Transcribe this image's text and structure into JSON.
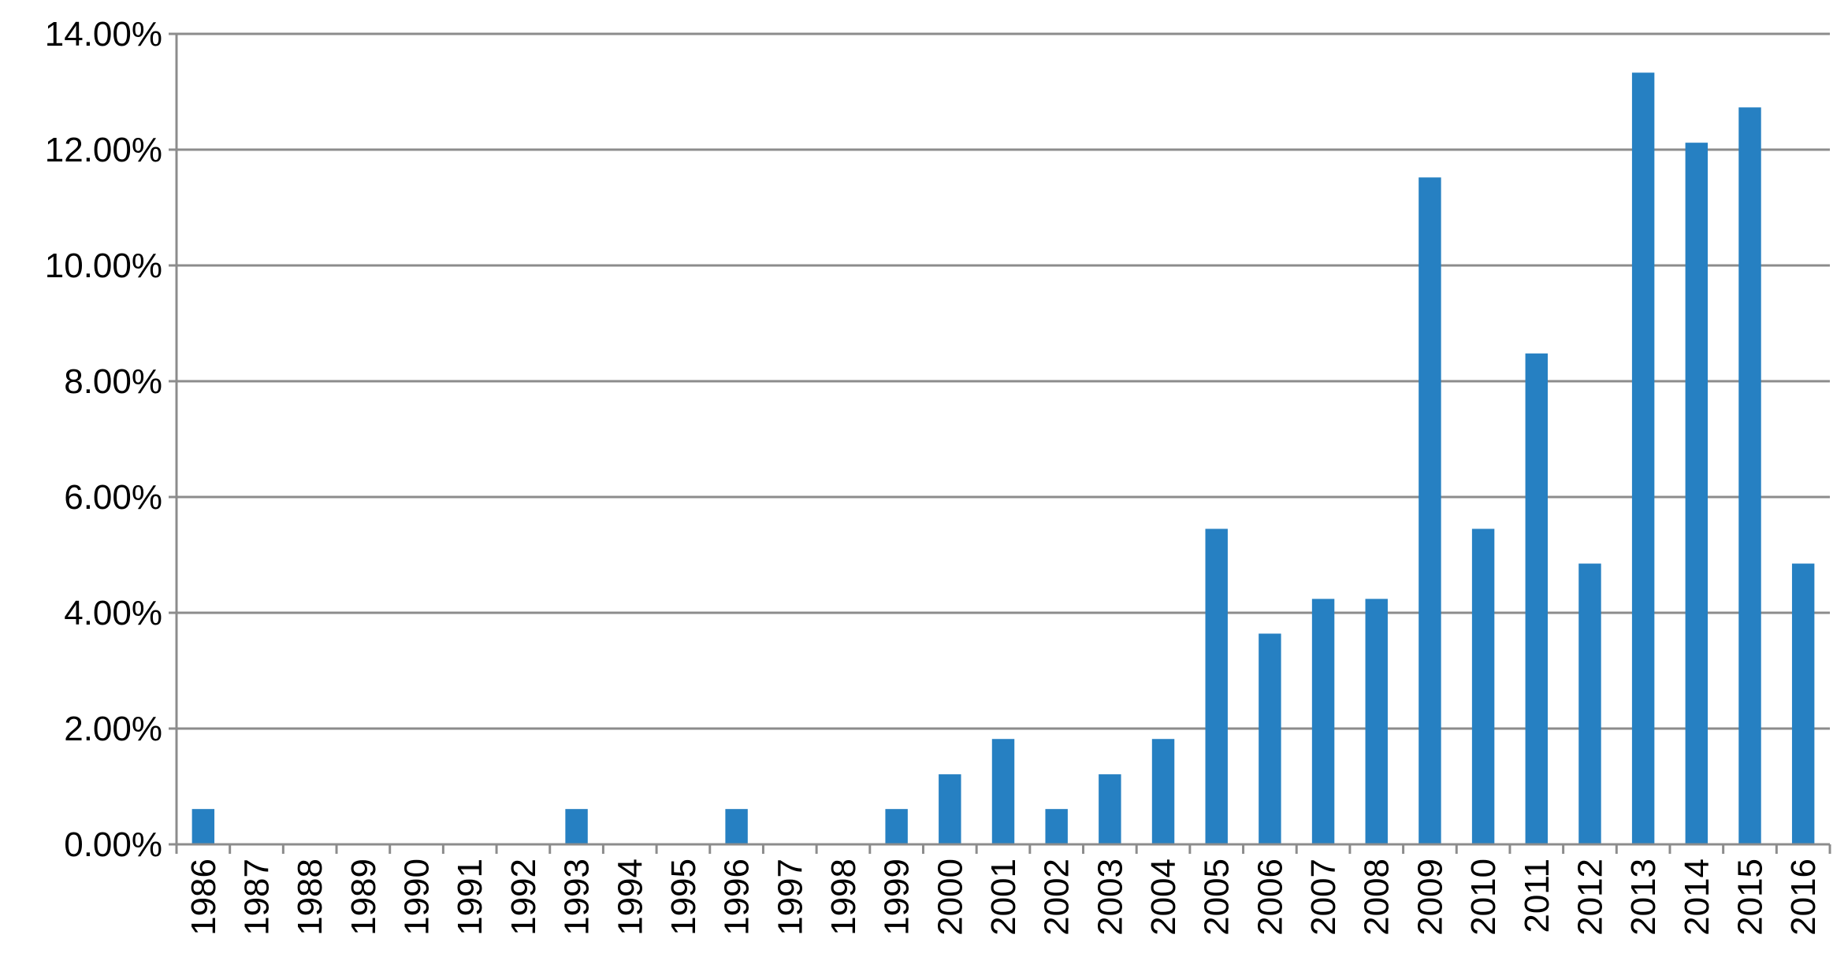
{
  "chart_data": {
    "type": "bar",
    "title": "",
    "xlabel": "",
    "ylabel": "",
    "categories": [
      "1986",
      "1987",
      "1988",
      "1989",
      "1990",
      "1991",
      "1992",
      "1993",
      "1994",
      "1995",
      "1996",
      "1997",
      "1998",
      "1999",
      "2000",
      "2001",
      "2002",
      "2003",
      "2004",
      "2005",
      "2006",
      "2007",
      "2008",
      "2009",
      "2010",
      "2011",
      "2012",
      "2013",
      "2014",
      "2015",
      "2016"
    ],
    "values": [
      0.61,
      0,
      0,
      0,
      0,
      0,
      0,
      0.61,
      0,
      0,
      0.61,
      0,
      0,
      0.61,
      1.21,
      1.82,
      0.61,
      1.21,
      1.82,
      5.45,
      3.64,
      4.24,
      4.24,
      11.52,
      5.45,
      8.48,
      4.85,
      13.33,
      12.12,
      12.73,
      4.85
    ],
    "value_unit": "%",
    "ylim": [
      0,
      14
    ],
    "yticks": [
      "0.00%",
      "2.00%",
      "4.00%",
      "6.00%",
      "8.00%",
      "10.00%",
      "12.00%",
      "14.00%"
    ],
    "ytick_values": [
      0,
      2,
      4,
      6,
      8,
      10,
      12,
      14
    ],
    "grid": true,
    "legend": "none",
    "colors": {
      "bar": "#2680C2",
      "grid": "#8C8C8C",
      "axis": "#8C8C8C",
      "text": "#000000"
    }
  }
}
